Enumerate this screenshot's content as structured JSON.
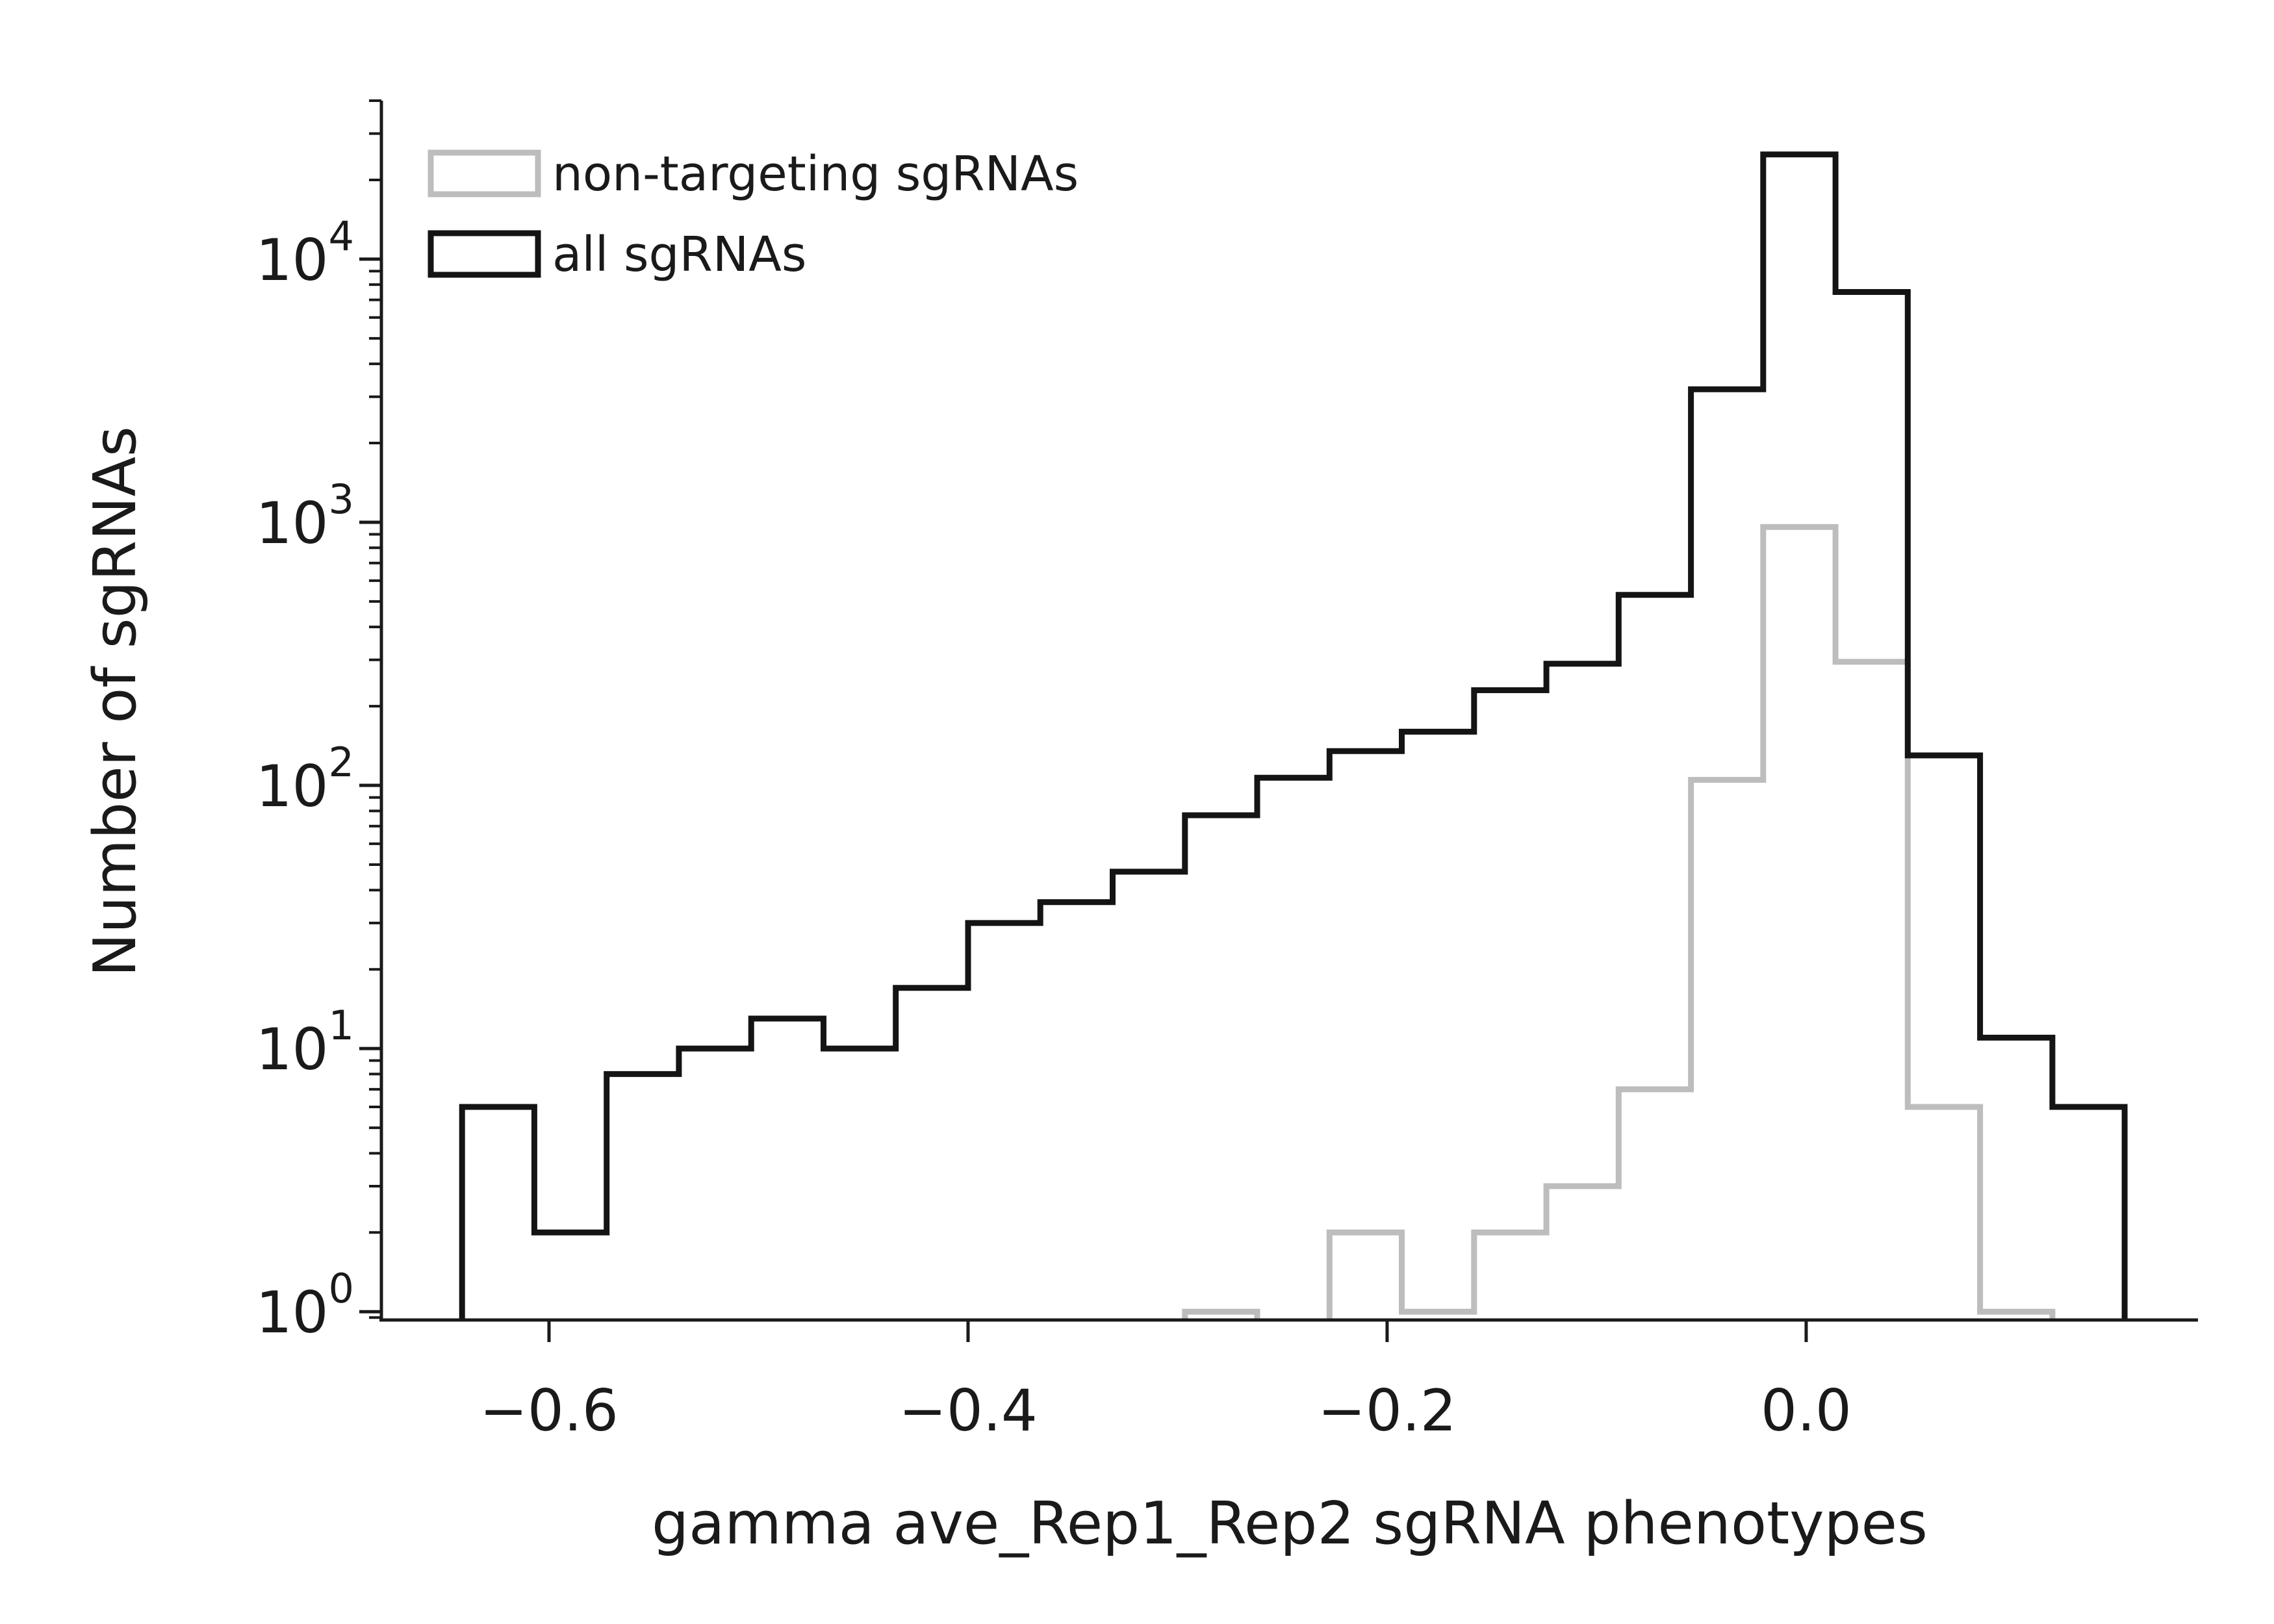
{
  "chart_data": {
    "type": "histogram",
    "xlabel": "gamma ave_Rep1_Rep2 sgRNA phenotypes",
    "ylabel": "Number of sgRNAs",
    "xlim": [
      -0.68,
      0.187
    ],
    "ylim": [
      0.93,
      40000
    ],
    "yscale": "log",
    "x_ticks": [
      -0.6,
      -0.4,
      -0.2,
      0.0
    ],
    "x_tick_labels": [
      "−0.6",
      "−0.4",
      "−0.2",
      "0.0"
    ],
    "y_ticks": [
      {
        "value": 1,
        "base": "10",
        "exp": "0"
      },
      {
        "value": 10,
        "base": "10",
        "exp": "1"
      },
      {
        "value": 100,
        "base": "10",
        "exp": "2"
      },
      {
        "value": 1000,
        "base": "10",
        "exp": "3"
      },
      {
        "value": 10000,
        "base": "10",
        "exp": "4"
      }
    ],
    "bin_edges": [
      -0.6415,
      -0.607,
      -0.5725,
      -0.538,
      -0.5035,
      -0.469,
      -0.4345,
      -0.4,
      -0.3655,
      -0.331,
      -0.2965,
      -0.262,
      -0.2275,
      -0.193,
      -0.1585,
      -0.124,
      -0.0895,
      -0.055,
      -0.0205,
      0.014,
      0.0485,
      0.083,
      0.1175,
      0.152
    ],
    "legend_position": "upper left",
    "series": [
      {
        "name": "non-targeting sgRNAs",
        "color": "#bdbdbd",
        "counts": [
          0,
          0,
          0,
          0,
          0,
          0,
          0,
          0,
          0,
          0,
          1,
          0,
          2,
          1,
          2,
          3,
          7,
          105,
          960,
          295,
          6,
          1,
          0
        ]
      },
      {
        "name": "all sgRNAs",
        "color": "#141414",
        "counts": [
          6,
          2,
          8,
          10,
          13,
          10,
          17,
          30,
          36,
          47,
          77,
          107,
          135,
          160,
          230,
          290,
          530,
          3200,
          25000,
          7500,
          130,
          11,
          6
        ]
      }
    ]
  }
}
